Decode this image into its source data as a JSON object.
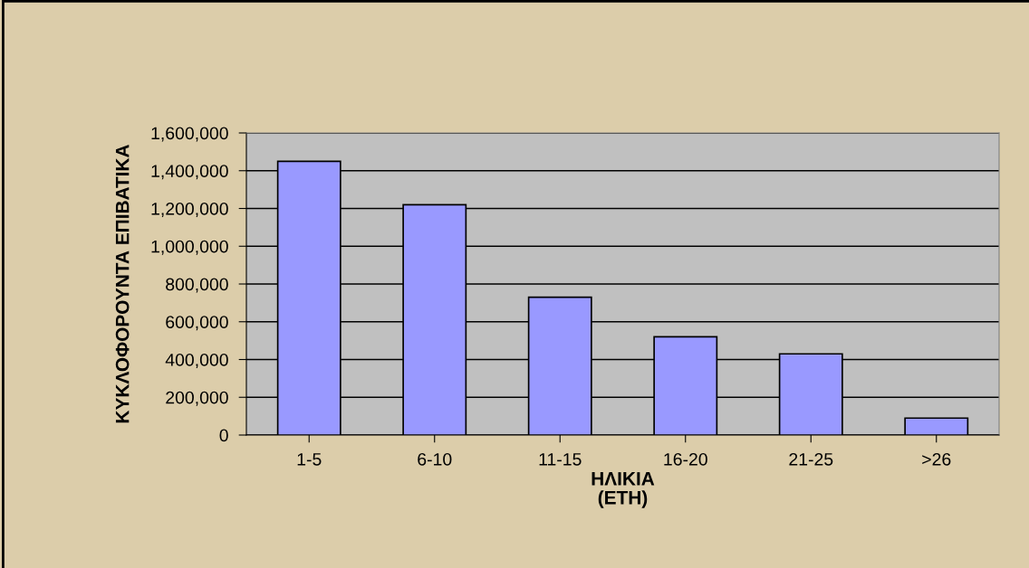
{
  "chart_data": {
    "type": "bar",
    "xlabel": "ΗΛΙΚΙΑ\n(ΕΤΗ)",
    "ylabel": "ΚΥΚΛΟΦΟΡΟΥΝΤΑ ΕΠΙΒΑΤΙΚΑ",
    "categories": [
      "1-5",
      "6-10",
      "11-15",
      "16-20",
      "21-25",
      ">26"
    ],
    "values": [
      1450000,
      1220000,
      730000,
      520000,
      430000,
      90000
    ],
    "color": "#9999ff",
    "ylim": [
      0,
      1600000
    ],
    "yticks": [
      {
        "value": 0,
        "label": "0"
      },
      {
        "value": 200000,
        "label": "200,000"
      },
      {
        "value": 400000,
        "label": "400,000"
      },
      {
        "value": 600000,
        "label": "600,000"
      },
      {
        "value": 800000,
        "label": "800,000"
      },
      {
        "value": 1000000,
        "label": "1,000,000"
      },
      {
        "value": 1200000,
        "label": "1,200,000"
      },
      {
        "value": 1400000,
        "label": "1,400,000"
      },
      {
        "value": 1600000,
        "label": "1,600,000"
      }
    ],
    "grid": "y",
    "legend": false
  }
}
